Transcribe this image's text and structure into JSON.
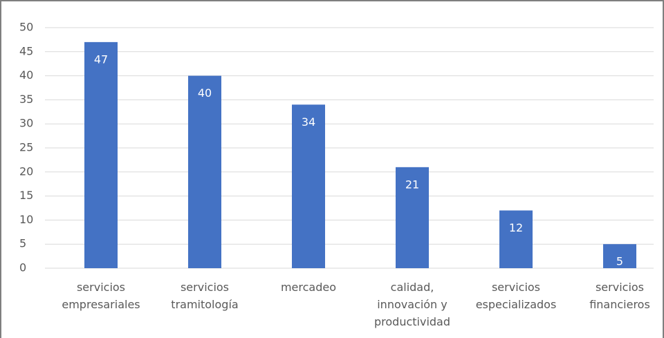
{
  "chart_data": {
    "type": "bar",
    "categories": [
      [
        "servicios",
        "empresariales"
      ],
      [
        "servicios",
        "tramitología"
      ],
      [
        "mercadeo"
      ],
      [
        "calidad,",
        "innovación y",
        "productividad"
      ],
      [
        "servicios",
        "especializados"
      ],
      [
        "servicios",
        "financieros"
      ]
    ],
    "values": [
      47,
      40,
      34,
      21,
      12,
      5
    ],
    "color": "#4472c4",
    "ylim": [
      0,
      50
    ],
    "yticks": [
      0,
      5,
      10,
      15,
      20,
      25,
      30,
      35,
      40,
      45,
      50
    ],
    "grid": true
  }
}
